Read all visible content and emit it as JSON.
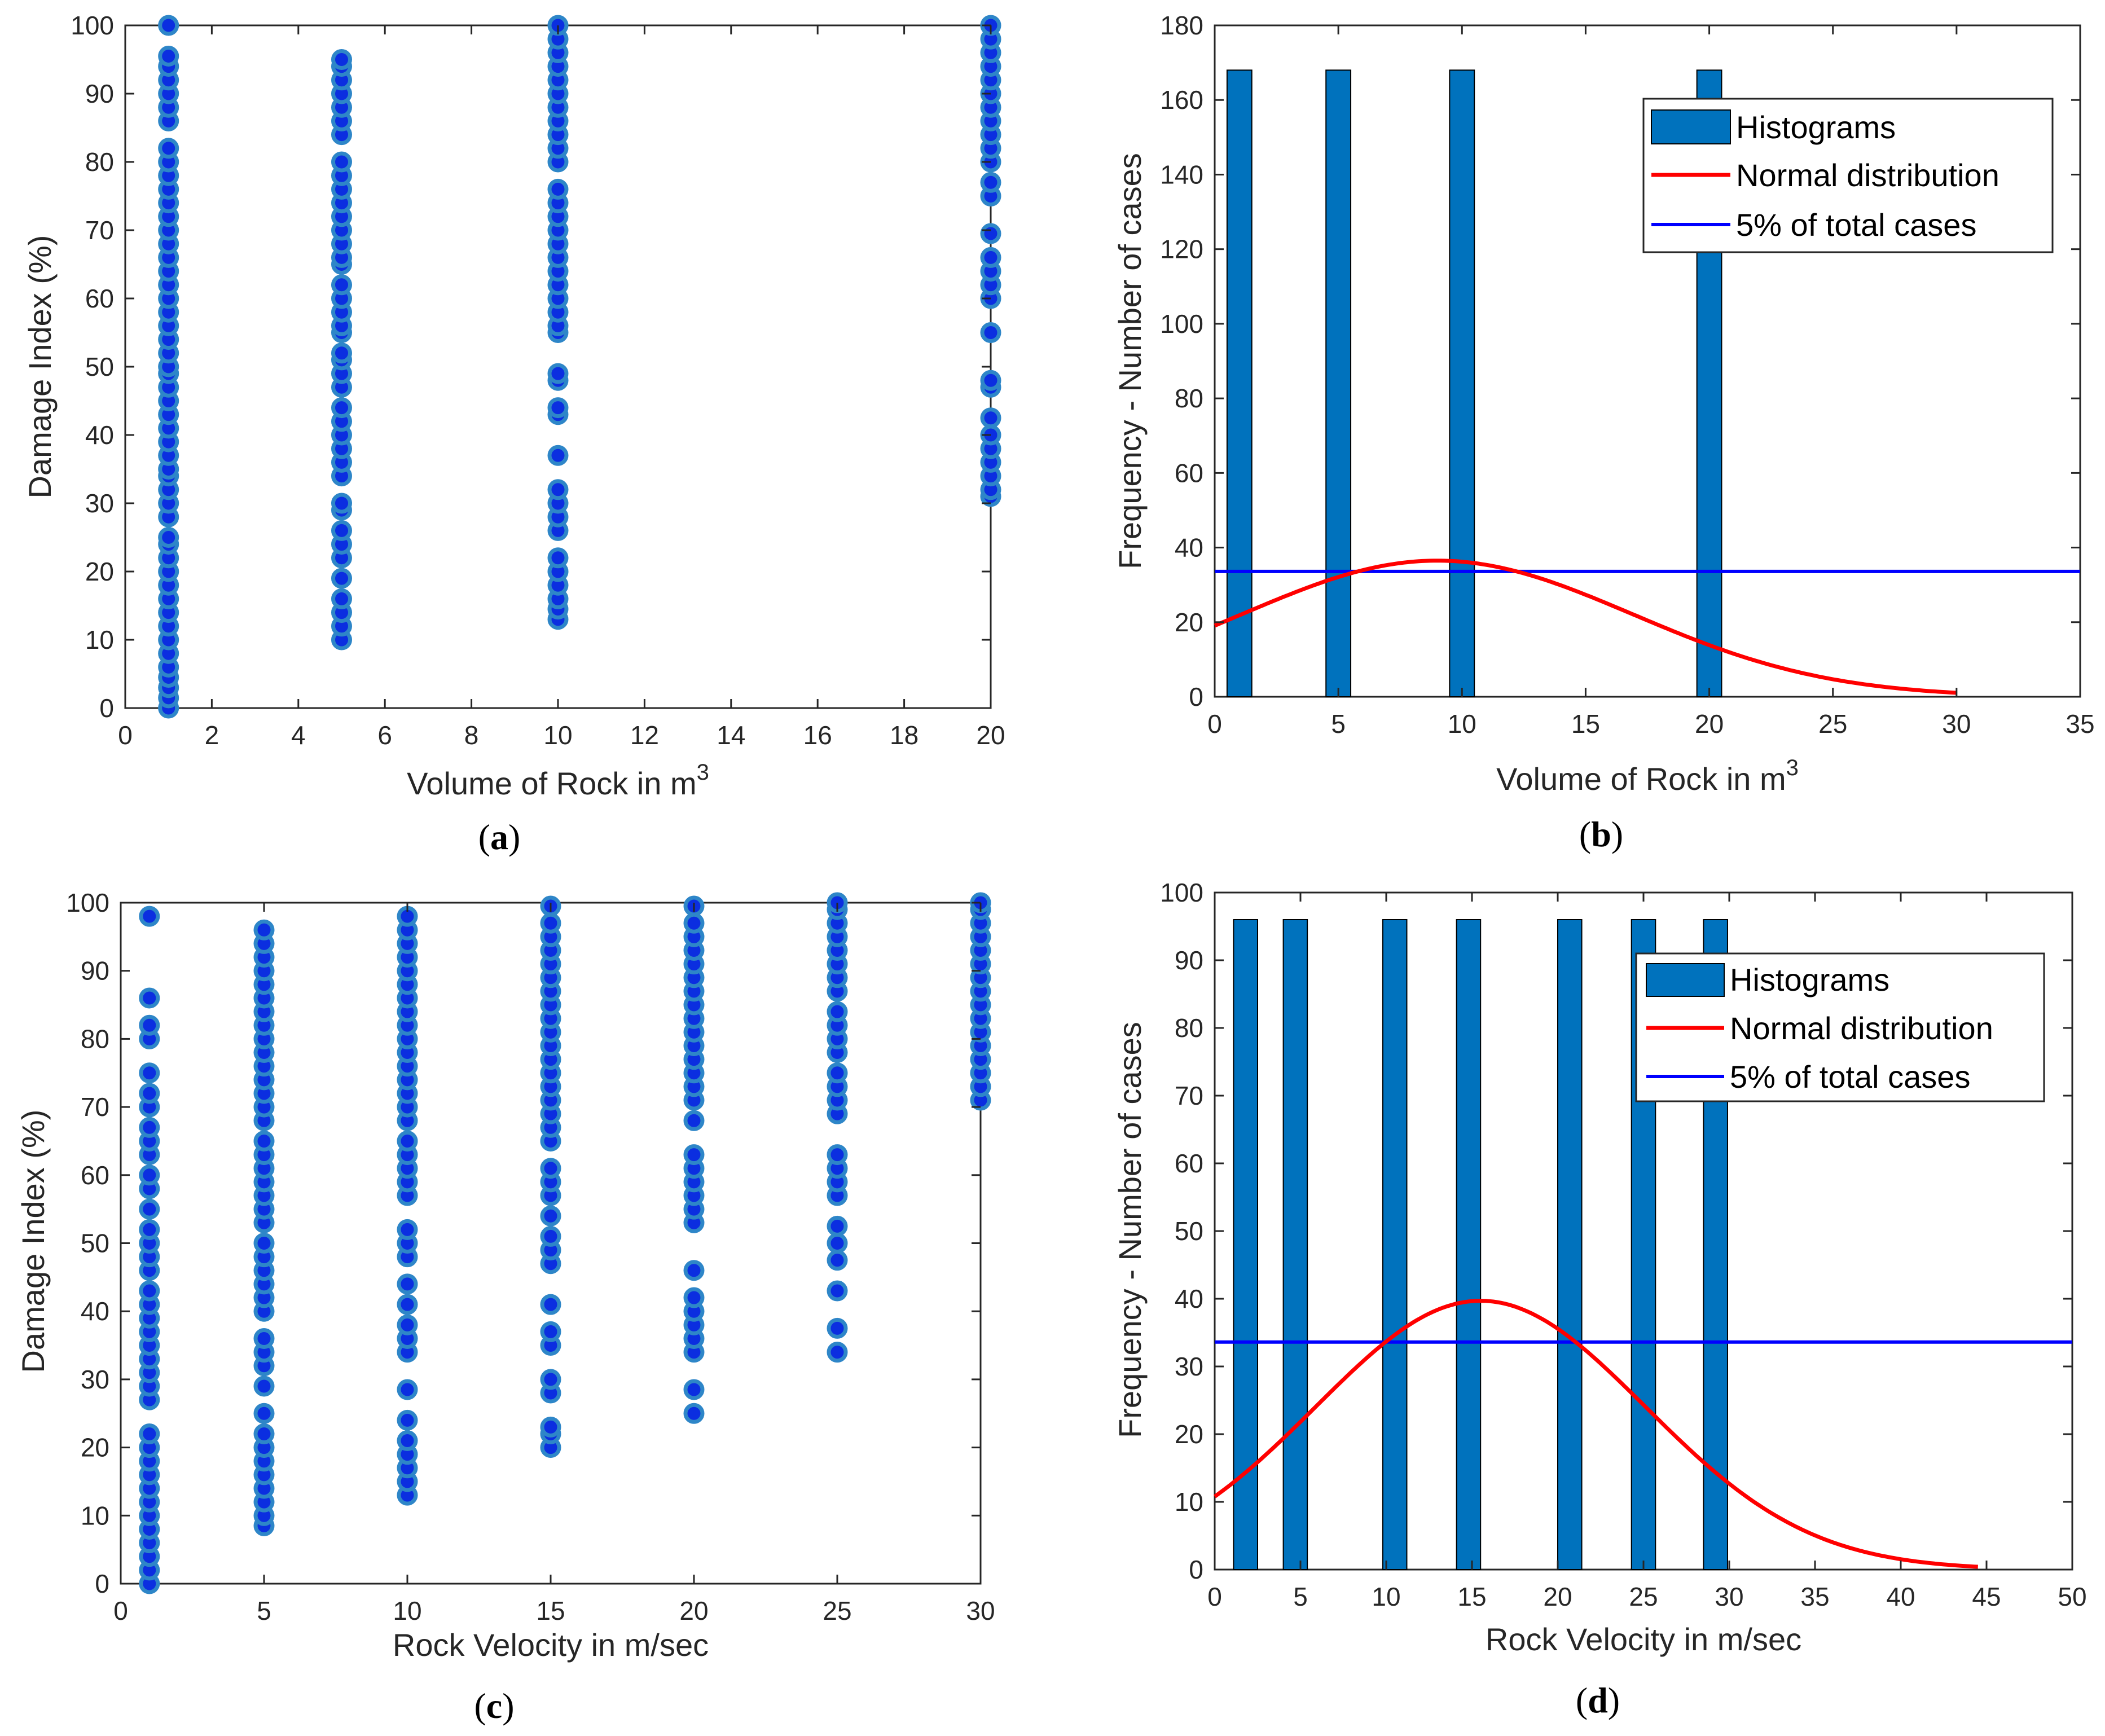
{
  "chart_data": [
    {
      "id": "a",
      "panel_label": "a",
      "type": "scatter",
      "title": "",
      "xlabel": "Volume of Rock in m",
      "xlabel_superscript": "3",
      "ylabel": "Damage Index (%)",
      "xlim": [
        0,
        20
      ],
      "ylim": [
        0,
        100
      ],
      "xticks": [
        0,
        2,
        4,
        6,
        8,
        10,
        12,
        14,
        16,
        18,
        20
      ],
      "yticks": [
        0,
        10,
        20,
        30,
        40,
        50,
        60,
        70,
        80,
        90,
        100
      ],
      "grid": false,
      "colors": {
        "marker_edge": "#2e86c8",
        "marker_face": "#0b2ee0"
      },
      "columns": [
        {
          "x": 1,
          "y": [
            0,
            1.5,
            3,
            4.5,
            6,
            8,
            10,
            12,
            14,
            16,
            18,
            20,
            22,
            24,
            25,
            28,
            30,
            32,
            34,
            35,
            37,
            39,
            41,
            43,
            45,
            47,
            49,
            50,
            52,
            54,
            56,
            58,
            60,
            62,
            64,
            66,
            68,
            70,
            72,
            74,
            76,
            78,
            80,
            82,
            86,
            88,
            90,
            92,
            94,
            95.5,
            100
          ]
        },
        {
          "x": 5,
          "y": [
            10,
            12,
            14,
            16,
            19,
            22,
            24,
            26,
            29,
            30,
            34,
            36,
            38,
            40,
            42,
            44,
            47,
            49,
            51,
            52,
            55,
            56,
            58,
            60,
            62,
            65,
            66,
            68,
            70,
            72,
            74,
            76,
            78,
            80,
            84,
            86,
            88,
            90,
            92,
            94,
            95
          ]
        },
        {
          "x": 10,
          "y": [
            13,
            14.5,
            16,
            18,
            20,
            22,
            26,
            28,
            30,
            32,
            37,
            43,
            44,
            48,
            49,
            55,
            56,
            58,
            60,
            62,
            64,
            66,
            68,
            70,
            72,
            74,
            76,
            80,
            82,
            84,
            86,
            88,
            90,
            92,
            94,
            96,
            98,
            100
          ]
        },
        {
          "x": 20,
          "y": [
            31,
            32,
            34,
            36,
            38,
            40,
            42.5,
            47,
            48,
            55,
            60,
            62,
            64,
            66,
            69.5,
            75,
            77,
            80,
            82,
            84,
            86,
            88,
            90,
            92,
            94,
            96,
            98,
            100
          ]
        }
      ]
    },
    {
      "id": "b",
      "panel_label": "b",
      "type": "bar",
      "title": "",
      "xlabel": "Volume of Rock in m",
      "xlabel_superscript": "3",
      "ylabel": "Frequency - Number of cases",
      "xlim": [
        0,
        35
      ],
      "ylim": [
        0,
        180
      ],
      "xticks": [
        0,
        5,
        10,
        15,
        20,
        25,
        30,
        35
      ],
      "yticks": [
        0,
        20,
        40,
        60,
        80,
        100,
        120,
        140,
        160,
        180
      ],
      "grid": false,
      "legend_position": "top-right",
      "bars": {
        "x": [
          1,
          5,
          10,
          20
        ],
        "values": [
          168,
          168,
          168,
          168
        ],
        "width": 1,
        "name": "Histograms",
        "color": "#0072bd"
      },
      "normal": {
        "name": "Normal distribution",
        "color": "#ff0000",
        "mean": 9,
        "sd": 7.9,
        "peak": 36.5,
        "x_range": [
          0,
          30
        ]
      },
      "threshold": {
        "name": "5% of total cases",
        "color": "#0000ff",
        "value": 33.6
      }
    },
    {
      "id": "c",
      "panel_label": "c",
      "type": "scatter",
      "title": "",
      "xlabel": "Rock Velocity in m/sec",
      "ylabel": "Damage Index (%)",
      "xlim": [
        0,
        30
      ],
      "ylim": [
        0,
        100
      ],
      "xticks": [
        0,
        5,
        10,
        15,
        20,
        25,
        30
      ],
      "yticks": [
        0,
        10,
        20,
        30,
        40,
        50,
        60,
        70,
        80,
        90,
        100
      ],
      "grid": false,
      "colors": {
        "marker_edge": "#2e86c8",
        "marker_face": "#0b2ee0"
      },
      "columns": [
        {
          "x": 1,
          "y": [
            0,
            2,
            4,
            6,
            8,
            10,
            12,
            14,
            16,
            18,
            20,
            22,
            27,
            29,
            31,
            33,
            35,
            37,
            39,
            41,
            43,
            46,
            48,
            50,
            52,
            55,
            58,
            60,
            63,
            65,
            67,
            70,
            72,
            75,
            80,
            82,
            86,
            98
          ]
        },
        {
          "x": 5,
          "y": [
            8.5,
            10,
            12,
            14,
            16,
            18,
            20,
            22,
            25,
            29,
            32,
            34,
            36,
            40,
            42,
            44,
            46,
            48,
            50,
            53,
            55,
            57,
            59,
            61,
            63,
            65,
            68,
            70,
            72,
            74,
            76,
            78,
            80,
            82,
            84,
            86,
            88,
            90,
            92,
            94,
            96
          ]
        },
        {
          "x": 10,
          "y": [
            13,
            15,
            17,
            19,
            21,
            24,
            28.5,
            34,
            36,
            38,
            41,
            44,
            48,
            50,
            52,
            57,
            59,
            61,
            63,
            65,
            68,
            70,
            72,
            74,
            76,
            78,
            80,
            82,
            84,
            86,
            88,
            90,
            92,
            94,
            96,
            98
          ]
        },
        {
          "x": 15,
          "y": [
            20,
            22,
            23,
            28,
            30,
            35,
            37,
            41,
            47,
            49,
            51,
            54,
            57,
            59,
            61,
            65,
            67,
            69,
            71,
            73,
            75,
            77,
            79,
            81,
            83,
            85,
            87,
            89,
            91,
            93,
            95,
            97,
            99.5
          ]
        },
        {
          "x": 20,
          "y": [
            25,
            28.5,
            34,
            36,
            38,
            40,
            42,
            46,
            53,
            55,
            57,
            59,
            61,
            63,
            68,
            71,
            73,
            75,
            77,
            79,
            81,
            83,
            85,
            87,
            89,
            91,
            93,
            95,
            97,
            99.5
          ]
        },
        {
          "x": 25,
          "y": [
            34,
            37.5,
            43,
            47.5,
            50,
            52.5,
            57,
            59,
            61,
            63,
            69,
            71,
            73,
            75,
            78,
            80,
            82,
            84,
            87,
            89,
            91,
            93,
            95,
            97,
            99,
            100
          ]
        },
        {
          "x": 30,
          "y": [
            71,
            73,
            75,
            77,
            79,
            81,
            83,
            85,
            87,
            89,
            91,
            93,
            95,
            97,
            99,
            100
          ]
        }
      ]
    },
    {
      "id": "d",
      "panel_label": "d",
      "type": "bar",
      "title": "",
      "xlabel": "Rock Velocity in m/sec",
      "ylabel": "Frequency - Number of cases",
      "xlim": [
        0,
        50
      ],
      "ylim": [
        0,
        100
      ],
      "xticks": [
        0,
        5,
        10,
        15,
        20,
        25,
        30,
        35,
        40,
        45,
        50
      ],
      "yticks": [
        0,
        10,
        20,
        30,
        40,
        50,
        60,
        70,
        80,
        90,
        100
      ],
      "grid": false,
      "legend_position": "top-right",
      "bars": {
        "x": [
          1.8,
          4.7,
          10.5,
          14.8,
          20.7,
          25,
          29.2
        ],
        "values": [
          96,
          96,
          96,
          96,
          96,
          96,
          96
        ],
        "width": 1.4,
        "name": "Histograms",
        "color": "#0072bd"
      },
      "normal": {
        "name": "Normal distribution",
        "color": "#ff0000",
        "mean": 15.5,
        "sd": 9.6,
        "peak": 39.7,
        "x_range": [
          0,
          44.5
        ]
      },
      "threshold": {
        "name": "5% of total cases",
        "color": "#0000ff",
        "value": 33.6
      }
    }
  ]
}
